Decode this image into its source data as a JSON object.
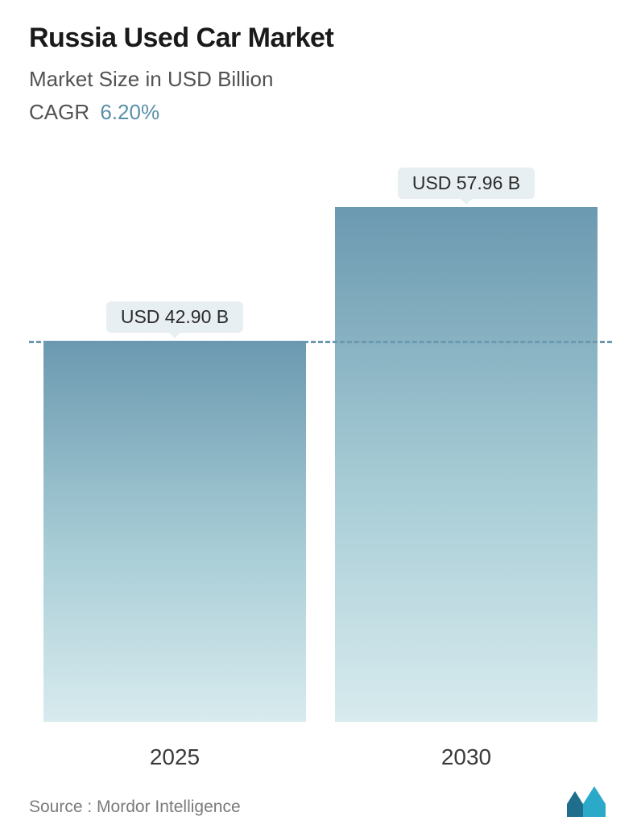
{
  "header": {
    "title": "Russia Used Car Market",
    "subtitle": "Market Size in USD Billion",
    "cagr_label": "CAGR",
    "cagr_value": "6.20%"
  },
  "chart": {
    "type": "bar",
    "background_color": "#ffffff",
    "bar_gradient_top": "#6b99b0",
    "bar_gradient_mid": "#a8cdd6",
    "bar_gradient_bottom": "#d8ebee",
    "badge_bg": "#e8eff2",
    "badge_text_color": "#2b2b2b",
    "reference_line_color": "#6b99b0",
    "reference_at_value": 42.9,
    "ymax": 60,
    "bars": [
      {
        "category": "2025",
        "value": 42.9,
        "label": "USD 42.90 B"
      },
      {
        "category": "2030",
        "value": 57.96,
        "label": "USD 57.96 B"
      }
    ],
    "title_fontsize": 34,
    "subtitle_fontsize": 26,
    "badge_fontsize": 23,
    "xlabel_fontsize": 28
  },
  "footer": {
    "source": "Source :  Mordor Intelligence",
    "logo_colors": {
      "left": "#1f6e8c",
      "right": "#2aa9c9"
    }
  }
}
